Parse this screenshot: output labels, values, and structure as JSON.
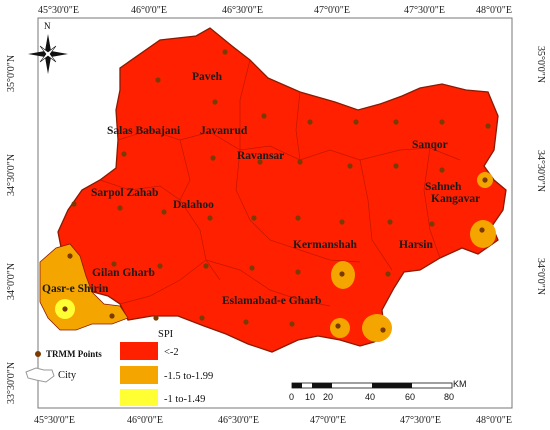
{
  "map": {
    "colors": {
      "lt_minus2": "#ff2000",
      "range_1_5_1_99": "#f5a500",
      "range_1_1_49": "#ffff33",
      "border": "#8a1a00",
      "point": "#7a3a00"
    },
    "north_label": "N",
    "lon_labels": [
      "45°30'0\"E",
      "46°0'0\"E",
      "46°30'0\"E",
      "47°0'0\"E",
      "47°30'0\"E",
      "48°0'0\"E"
    ],
    "lat_labels": [
      "35°0'0\"N",
      "34°30'0\"N",
      "34°0'0\"N",
      "33°30'0\"N"
    ],
    "cities": [
      "Paveh",
      "Salas Babajani",
      "Javanrud",
      "Ravansar",
      "Sanqor",
      "Sarpol Zahab",
      "Dalahoo",
      "Sahneh",
      "Kangavar",
      "Kermanshah",
      "Harsin",
      "Gilan Gharb",
      "Qasr-e Shirin",
      "Eslamabad-e Gharb"
    ],
    "legend": {
      "points_label": "TRMM Points",
      "city_label": "City",
      "spi_title": "SPI",
      "classes": [
        "<-2",
        "-1.5 to-1.99",
        "-1 to-1.49"
      ]
    },
    "scale": {
      "unit": "KM",
      "ticks": [
        "0",
        "10",
        "20",
        "40",
        "60",
        "80"
      ]
    }
  }
}
